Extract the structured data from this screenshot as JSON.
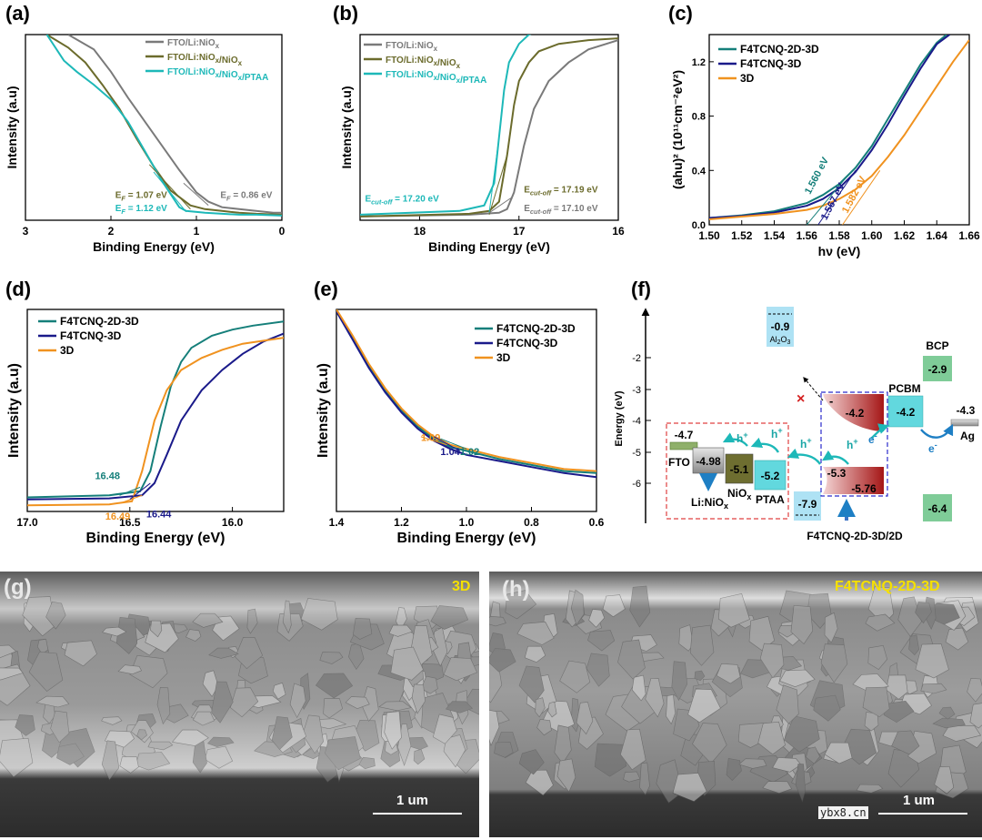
{
  "colors": {
    "gray": "#7a7a7a",
    "olive": "#6b6b2c",
    "cyan": "#1db8b8",
    "teal": "#157f7a",
    "navy": "#1a1a8a",
    "orange": "#f0921f",
    "yellow_label": "#f5e000"
  },
  "chart_data": [
    {
      "panel": "(a)",
      "type": "line",
      "xlabel": "Binding Energy (eV)",
      "ylabel": "Intensity (a.u)",
      "xlim": [
        3,
        0
      ],
      "ylim": [
        0,
        1
      ],
      "xticks": [
        "3",
        "2",
        "1",
        "0"
      ],
      "legend": [
        "FTO/Li:NiOx",
        "FTO/Li:NiOx/NiOx",
        "FTO/Li:NiOx/NiOx/PTAA"
      ],
      "series": [
        {
          "name": "FTO/Li:NiOx",
          "color": "gray",
          "x": [
            2.5,
            2.2,
            2.0,
            1.8,
            1.6,
            1.4,
            1.2,
            1.0,
            0.86,
            0.7,
            0.5,
            0.3,
            0.1,
            0.0
          ],
          "y": [
            1.0,
            0.92,
            0.8,
            0.66,
            0.53,
            0.4,
            0.27,
            0.15,
            0.1,
            0.07,
            0.06,
            0.05,
            0.04,
            0.04
          ]
        },
        {
          "name": "FTO/Li:NiOx/NiOx",
          "color": "olive",
          "x": [
            2.75,
            2.5,
            2.3,
            2.1,
            1.9,
            1.7,
            1.5,
            1.3,
            1.07,
            0.9,
            0.7,
            0.5,
            0.3,
            0.0
          ],
          "y": [
            1.0,
            0.93,
            0.85,
            0.73,
            0.6,
            0.44,
            0.29,
            0.16,
            0.08,
            0.06,
            0.05,
            0.04,
            0.035,
            0.03
          ]
        },
        {
          "name": "FTO/Li:NiOx/NiOx/PTAA",
          "color": "cyan",
          "x": [
            2.75,
            2.55,
            2.4,
            2.2,
            2.0,
            1.8,
            1.6,
            1.4,
            1.2,
            1.12,
            0.9,
            0.7,
            0.5,
            0.3,
            0.0
          ],
          "y": [
            1.0,
            0.86,
            0.8,
            0.73,
            0.65,
            0.53,
            0.37,
            0.21,
            0.07,
            0.05,
            0.04,
            0.035,
            0.03,
            0.03,
            0.025
          ]
        }
      ],
      "annotations": [
        {
          "base": "E",
          "sub": "F",
          "rest": " = 1.07 eV",
          "color": "olive",
          "x": 1.95,
          "y": 0.12
        },
        {
          "base": "E",
          "sub": "F",
          "rest": " = 1.12 eV",
          "color": "cyan",
          "x": 1.95,
          "y": 0.05
        },
        {
          "base": "E",
          "sub": "F",
          "rest": " = 0.86 eV",
          "color": "gray",
          "x": 0.72,
          "y": 0.12
        }
      ]
    },
    {
      "panel": "(b)",
      "type": "line",
      "xlabel": "Binding Energy (eV)",
      "ylabel": "Intensity (a.u)",
      "xlim": [
        18.6,
        16
      ],
      "ylim": [
        0,
        1
      ],
      "xticks": [
        "18",
        "17",
        "16"
      ],
      "legend": [
        "FTO/Li:NiOx",
        "FTO/Li:NiOx/NiOx",
        "FTO/Li:NiOx/NiOx/PTAA"
      ],
      "series": [
        {
          "name": "FTO/Li:NiOx",
          "color": "gray",
          "x": [
            18.6,
            17.5,
            17.2,
            17.12,
            17.05,
            16.95,
            16.85,
            16.7,
            16.5,
            16.3,
            16.0
          ],
          "y": [
            0.02,
            0.03,
            0.04,
            0.06,
            0.15,
            0.4,
            0.6,
            0.75,
            0.85,
            0.92,
            0.97
          ]
        },
        {
          "name": "FTO/Li:NiOx/NiOx",
          "color": "olive",
          "x": [
            18.6,
            17.5,
            17.3,
            17.2,
            17.12,
            17.05,
            17.0,
            16.9,
            16.8,
            16.6,
            16.3,
            16.0
          ],
          "y": [
            0.02,
            0.035,
            0.05,
            0.1,
            0.35,
            0.62,
            0.75,
            0.85,
            0.91,
            0.95,
            0.97,
            0.98
          ]
        },
        {
          "name": "FTO/Li:NiOx/NiOx/PTAA",
          "color": "cyan",
          "x": [
            18.6,
            17.6,
            17.35,
            17.25,
            17.2,
            17.15,
            17.1,
            17.0,
            16.9,
            16.8
          ],
          "y": [
            0.03,
            0.05,
            0.08,
            0.2,
            0.45,
            0.7,
            0.85,
            0.95,
            1.0,
            1.02
          ]
        }
      ],
      "annotations": [
        {
          "base": "E",
          "sub": "cut-off",
          "rest": " = 17.20 eV",
          "color": "cyan",
          "x": 18.55,
          "y": 0.1
        },
        {
          "base": "E",
          "sub": "cut-off",
          "rest": " = 17.19 eV",
          "color": "olive",
          "x": 16.95,
          "y": 0.15
        },
        {
          "base": "E",
          "sub": "cut-off",
          "rest": " = 17.10 eV",
          "color": "gray",
          "x": 16.95,
          "y": 0.05
        }
      ]
    },
    {
      "panel": "(c)",
      "type": "line",
      "xlabel": "hν (eV)",
      "ylabel": "(ahu)² (10¹¹cm⁻²eV²)",
      "xlim": [
        1.5,
        1.66
      ],
      "ylim": [
        0,
        1.4
      ],
      "xticks": [
        "1.50",
        "1.52",
        "1.54",
        "1.56",
        "1.58",
        "1.60",
        "1.62",
        "1.64",
        "1.66"
      ],
      "yticks": [
        "0.0",
        "0.4",
        "0.8",
        "1.2"
      ],
      "legend": [
        "F4TCNQ-2D-3D",
        "F4TCNQ-3D",
        "3D"
      ],
      "series": [
        {
          "name": "F4TCNQ-2D-3D",
          "color": "teal",
          "x": [
            1.5,
            1.52,
            1.54,
            1.56,
            1.57,
            1.58,
            1.59,
            1.6,
            1.61,
            1.62,
            1.63,
            1.64,
            1.646
          ],
          "y": [
            0.05,
            0.07,
            0.1,
            0.16,
            0.22,
            0.3,
            0.42,
            0.58,
            0.78,
            0.98,
            1.18,
            1.34,
            1.4
          ]
        },
        {
          "name": "F4TCNQ-3D",
          "color": "navy",
          "x": [
            1.5,
            1.52,
            1.54,
            1.56,
            1.57,
            1.58,
            1.59,
            1.6,
            1.61,
            1.62,
            1.63,
            1.64,
            1.648
          ],
          "y": [
            0.05,
            0.065,
            0.09,
            0.14,
            0.19,
            0.27,
            0.39,
            0.55,
            0.74,
            0.95,
            1.15,
            1.33,
            1.4
          ]
        },
        {
          "name": "3D",
          "color": "orange",
          "x": [
            1.5,
            1.52,
            1.54,
            1.56,
            1.57,
            1.58,
            1.59,
            1.6,
            1.61,
            1.62,
            1.63,
            1.64,
            1.65,
            1.66
          ],
          "y": [
            0.04,
            0.06,
            0.08,
            0.11,
            0.14,
            0.19,
            0.26,
            0.36,
            0.5,
            0.66,
            0.84,
            1.02,
            1.2,
            1.36
          ]
        }
      ],
      "annotations": [
        {
          "text": "1.560 eV",
          "color": "teal"
        },
        {
          "text": "1.567 eV",
          "color": "navy"
        },
        {
          "text": "1.582 eV",
          "color": "orange"
        }
      ]
    },
    {
      "panel": "(d)",
      "type": "line",
      "xlabel": "Binding Energy (eV)",
      "ylabel": "Intensity (a.u)",
      "xlim": [
        17.0,
        15.75
      ],
      "ylim": [
        0,
        1
      ],
      "xticks": [
        "17.0",
        "16.5",
        "16.0"
      ],
      "legend": [
        "F4TCNQ-2D-3D",
        "F4TCNQ-3D",
        "3D"
      ],
      "series": [
        {
          "name": "F4TCNQ-2D-3D",
          "color": "teal",
          "x": [
            17.0,
            16.6,
            16.45,
            16.4,
            16.35,
            16.3,
            16.25,
            16.2,
            16.1,
            16.0,
            15.9,
            15.75
          ],
          "y": [
            0.07,
            0.08,
            0.1,
            0.2,
            0.42,
            0.62,
            0.74,
            0.81,
            0.87,
            0.9,
            0.92,
            0.94
          ]
        },
        {
          "name": "F4TCNQ-3D",
          "color": "navy",
          "x": [
            17.0,
            16.6,
            16.44,
            16.38,
            16.32,
            16.25,
            16.15,
            16.05,
            15.95,
            15.85,
            15.75
          ],
          "y": [
            0.06,
            0.065,
            0.08,
            0.14,
            0.28,
            0.45,
            0.6,
            0.7,
            0.78,
            0.84,
            0.88
          ]
        },
        {
          "name": "3D",
          "color": "orange",
          "x": [
            17.0,
            16.6,
            16.49,
            16.44,
            16.38,
            16.32,
            16.25,
            16.15,
            16.05,
            15.95,
            15.75
          ],
          "y": [
            0.03,
            0.035,
            0.05,
            0.2,
            0.45,
            0.6,
            0.7,
            0.76,
            0.8,
            0.83,
            0.86
          ]
        }
      ],
      "annotations": [
        {
          "text": "16.48",
          "color": "teal",
          "x": 16.67,
          "y": 0.16
        },
        {
          "text": "16.49",
          "color": "orange",
          "x": 16.62,
          "y": -0.04
        },
        {
          "text": "16.44",
          "color": "navy",
          "x": 16.42,
          "y": -0.03
        }
      ]
    },
    {
      "panel": "(e)",
      "type": "line",
      "xlabel": "Binding Energy (eV)",
      "ylabel": "Intensity (a.u)",
      "xlim": [
        1.4,
        0.6
      ],
      "ylim": [
        0,
        1
      ],
      "xticks": [
        "1.4",
        "1.2",
        "1.0",
        "0.8",
        "0.6"
      ],
      "legend": [
        "F4TCNQ-2D-3D",
        "F4TCNQ-3D",
        "3D"
      ],
      "series": [
        {
          "name": "F4TCNQ-2D-3D",
          "color": "teal",
          "x": [
            1.4,
            1.35,
            1.3,
            1.25,
            1.2,
            1.15,
            1.1,
            1.05,
            1.0,
            0.9,
            0.8,
            0.7,
            0.6
          ],
          "y": [
            1.0,
            0.86,
            0.72,
            0.6,
            0.5,
            0.42,
            0.36,
            0.32,
            0.3,
            0.26,
            0.23,
            0.2,
            0.19
          ]
        },
        {
          "name": "F4TCNQ-3D",
          "color": "navy",
          "x": [
            1.4,
            1.35,
            1.3,
            1.25,
            1.2,
            1.15,
            1.1,
            1.05,
            1.0,
            0.9,
            0.8,
            0.7,
            0.6
          ],
          "y": [
            0.99,
            0.85,
            0.71,
            0.59,
            0.49,
            0.41,
            0.35,
            0.31,
            0.28,
            0.25,
            0.22,
            0.19,
            0.17
          ]
        },
        {
          "name": "3D",
          "color": "orange",
          "x": [
            1.4,
            1.35,
            1.3,
            1.25,
            1.2,
            1.15,
            1.1,
            1.05,
            1.0,
            0.9,
            0.8,
            0.7,
            0.6
          ],
          "y": [
            1.0,
            0.87,
            0.73,
            0.61,
            0.51,
            0.43,
            0.37,
            0.33,
            0.31,
            0.27,
            0.24,
            0.21,
            0.2
          ]
        }
      ],
      "annotations": [
        {
          "text": "1.09",
          "color": "orange",
          "x": 1.14,
          "y": 0.35
        },
        {
          "text": "1.04",
          "color": "navy",
          "x": 1.08,
          "y": 0.28
        },
        {
          "text": "1.02",
          "color": "teal",
          "x": 1.02,
          "y": 0.28
        }
      ]
    }
  ],
  "diagram_f": {
    "panel": "(f)",
    "ylabel": "Energy (eV)",
    "yticks": [
      "-2",
      "-3",
      "-4",
      "-5",
      "-6"
    ],
    "levels": {
      "al2o3_cb": "-0.9",
      "al2o3_label": "Al2O3",
      "al2o3_vb": "-7.9",
      "bcp_cb": "-2.9",
      "bcp_vb": "-6.4",
      "bcp_label": "BCP",
      "pcbm": "-4.2",
      "pcbm_label": "PCBM",
      "ag": "-4.3",
      "ag_label": "Ag",
      "fto": "-4.7",
      "fto_label": "FTO",
      "linio": "-4.98",
      "linio_label": "Li:NiOx",
      "niox": "-5.1",
      "niox_label": "NiOx",
      "ptaa": "-5.2",
      "ptaa_label": "PTAA",
      "pvk_cb": "-4.2",
      "pvk_vb1": "-5.3",
      "pvk_vb2": "-5.76",
      "pvk_label": "F4TCNQ-2D-3D/2D"
    },
    "carriers": {
      "hole": "h+",
      "electron": "e-"
    }
  },
  "sem": [
    {
      "panel": "(g)",
      "label": "3D",
      "scale": "1 um"
    },
    {
      "panel": "(h)",
      "label": "F4TCNQ-2D-3D",
      "scale": "1 um"
    }
  ],
  "watermark": "ybx8.cn"
}
